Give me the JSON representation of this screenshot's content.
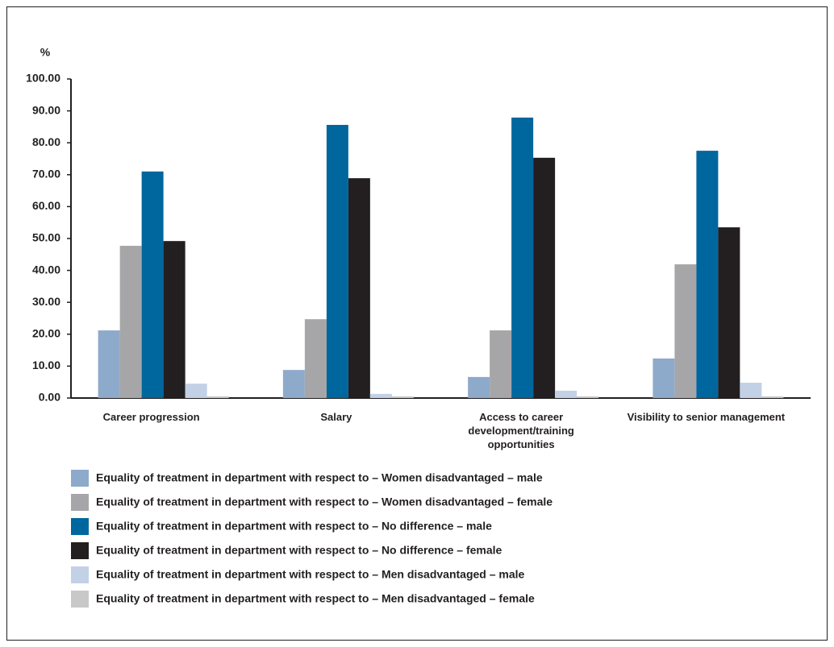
{
  "chart_data": {
    "type": "bar",
    "y_label": "%",
    "categories": [
      "Career progression",
      "Salary",
      "Access to career development/training opportunities",
      "Visibility to senior management"
    ],
    "series": [
      {
        "name": "Equality of treatment in department with respect to – Women disadvantaged – male",
        "color": "#8eaacb",
        "values": [
          21.2,
          8.8,
          6.6,
          12.4
        ]
      },
      {
        "name": "Equality of treatment in department with respect to – Women disadvantaged – female",
        "color": "#a6a6a8",
        "values": [
          47.7,
          24.7,
          21.2,
          41.9
        ]
      },
      {
        "name": "Equality of treatment in department with respect to – No difference – male",
        "color": "#00669e",
        "values": [
          71,
          85.6,
          87.9,
          77.5
        ]
      },
      {
        "name": "Equality of treatment in department with respect to – No difference – female",
        "color": "#231f20",
        "values": [
          49.2,
          68.9,
          75.3,
          53.5
        ]
      },
      {
        "name": "Equality of treatment in department with respect to – Men disadvantaged – male",
        "color": "#c2d1e5",
        "values": [
          4.5,
          1.3,
          2.3,
          4.8
        ]
      },
      {
        "name": "Equality of treatment in department with respect to – Men disadvantaged – female",
        "color": "#c8c8c8",
        "values": [
          0.5,
          0.5,
          0.5,
          0.5
        ]
      }
    ],
    "ylim": [
      0,
      100
    ],
    "yticks": [
      {
        "value": 0,
        "label": "0.00"
      },
      {
        "value": 10,
        "label": "10.00"
      },
      {
        "value": 20,
        "label": "20.00"
      },
      {
        "value": 30,
        "label": "30.00"
      },
      {
        "value": 40,
        "label": "40.00"
      },
      {
        "value": 50,
        "label": "50.00"
      },
      {
        "value": 60,
        "label": "60.00"
      },
      {
        "value": 70,
        "label": "70.00"
      },
      {
        "value": 80,
        "label": "80.00"
      },
      {
        "value": 90,
        "label": "90.00"
      },
      {
        "value": 100,
        "label": "100.00"
      }
    ],
    "grid": false,
    "legend": "bottom"
  }
}
